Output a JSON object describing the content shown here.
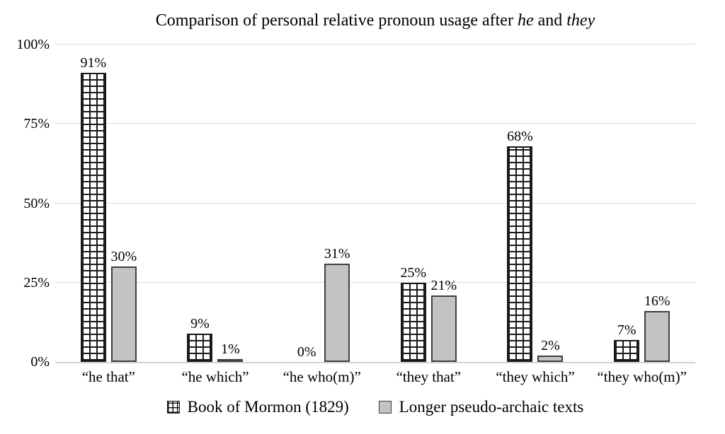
{
  "title": {
    "full": "Comparison of personal relative pronoun usage after he and they",
    "parts": [
      {
        "text": "Comparison of personal relative pronoun usage after ",
        "italic": false
      },
      {
        "text": "he",
        "italic": true
      },
      {
        "text": " and ",
        "italic": false
      },
      {
        "text": "they",
        "italic": true
      }
    ]
  },
  "chart_data": {
    "type": "bar",
    "title": "Comparison of personal relative pronoun usage after he and they",
    "categories": [
      "“he that”",
      "“he which”",
      "“he who(m)”",
      "“they that”",
      "“they which”",
      "“they who(m)”"
    ],
    "series": [
      {
        "name": "Book of Mormon (1829)",
        "style": "crosshatch",
        "values": [
          91,
          9,
          0,
          25,
          68,
          7
        ]
      },
      {
        "name": "Longer pseudo-archaic texts",
        "style": "solid",
        "values": [
          30,
          1,
          31,
          21,
          2,
          16
        ]
      }
    ],
    "value_suffix": "%",
    "data_labels": true,
    "xlabel": "",
    "ylabel": "",
    "ylim": [
      0,
      100
    ],
    "y_ticks": [
      {
        "label": "0%",
        "value": 0
      },
      {
        "label": "25%",
        "value": 25
      },
      {
        "label": "50%",
        "value": 50
      },
      {
        "label": "75%",
        "value": 75
      },
      {
        "label": "100%",
        "value": 100
      }
    ],
    "grid": true,
    "legend_position": "bottom"
  },
  "colors": {
    "background": "#ffffff",
    "bar_gray_fill": "#c3c3c3",
    "bar_gray_outline": "#3f3f3f",
    "crosshatch_line": "#1a1a1a",
    "gridline": "#dcdcdc",
    "text": "#000000"
  }
}
